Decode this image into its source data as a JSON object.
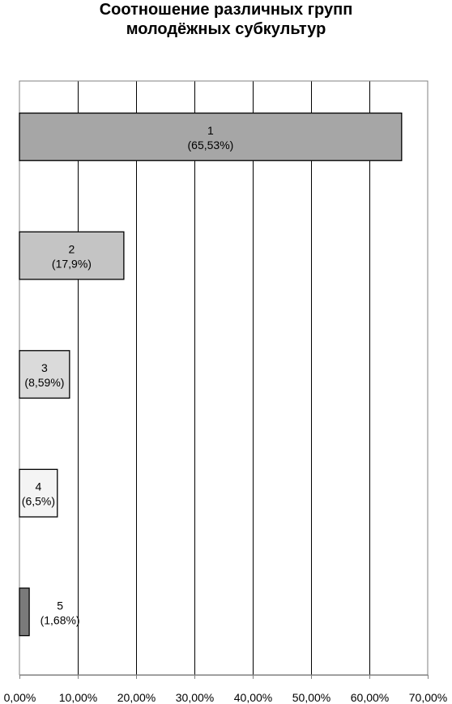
{
  "chart_data": {
    "type": "bar",
    "orientation": "horizontal",
    "title_lines": [
      "Соотношение различных групп",
      "молодёжных субкультур"
    ],
    "xlim": [
      0,
      70
    ],
    "x_ticks": [
      0,
      10,
      20,
      30,
      40,
      50,
      60,
      70
    ],
    "x_tick_labels": [
      "0,00%",
      "10,00%",
      "20,00%",
      "30,00%",
      "40,00%",
      "50,00%",
      "60,00%",
      "70,00%"
    ],
    "grid": true,
    "legend": "none",
    "categories": [
      "1",
      "2",
      "3",
      "4",
      "5"
    ],
    "values": [
      65.53,
      17.9,
      8.59,
      6.5,
      1.68
    ],
    "value_labels": [
      "(65,53%)",
      "(17,9%)",
      "(8,59%)",
      "(6,5%)",
      "(1,68%)"
    ],
    "colors": [
      "#a6a6a6",
      "#c4c4c4",
      "#dadada",
      "#f4f4f4",
      "#7a7a7a"
    ]
  }
}
